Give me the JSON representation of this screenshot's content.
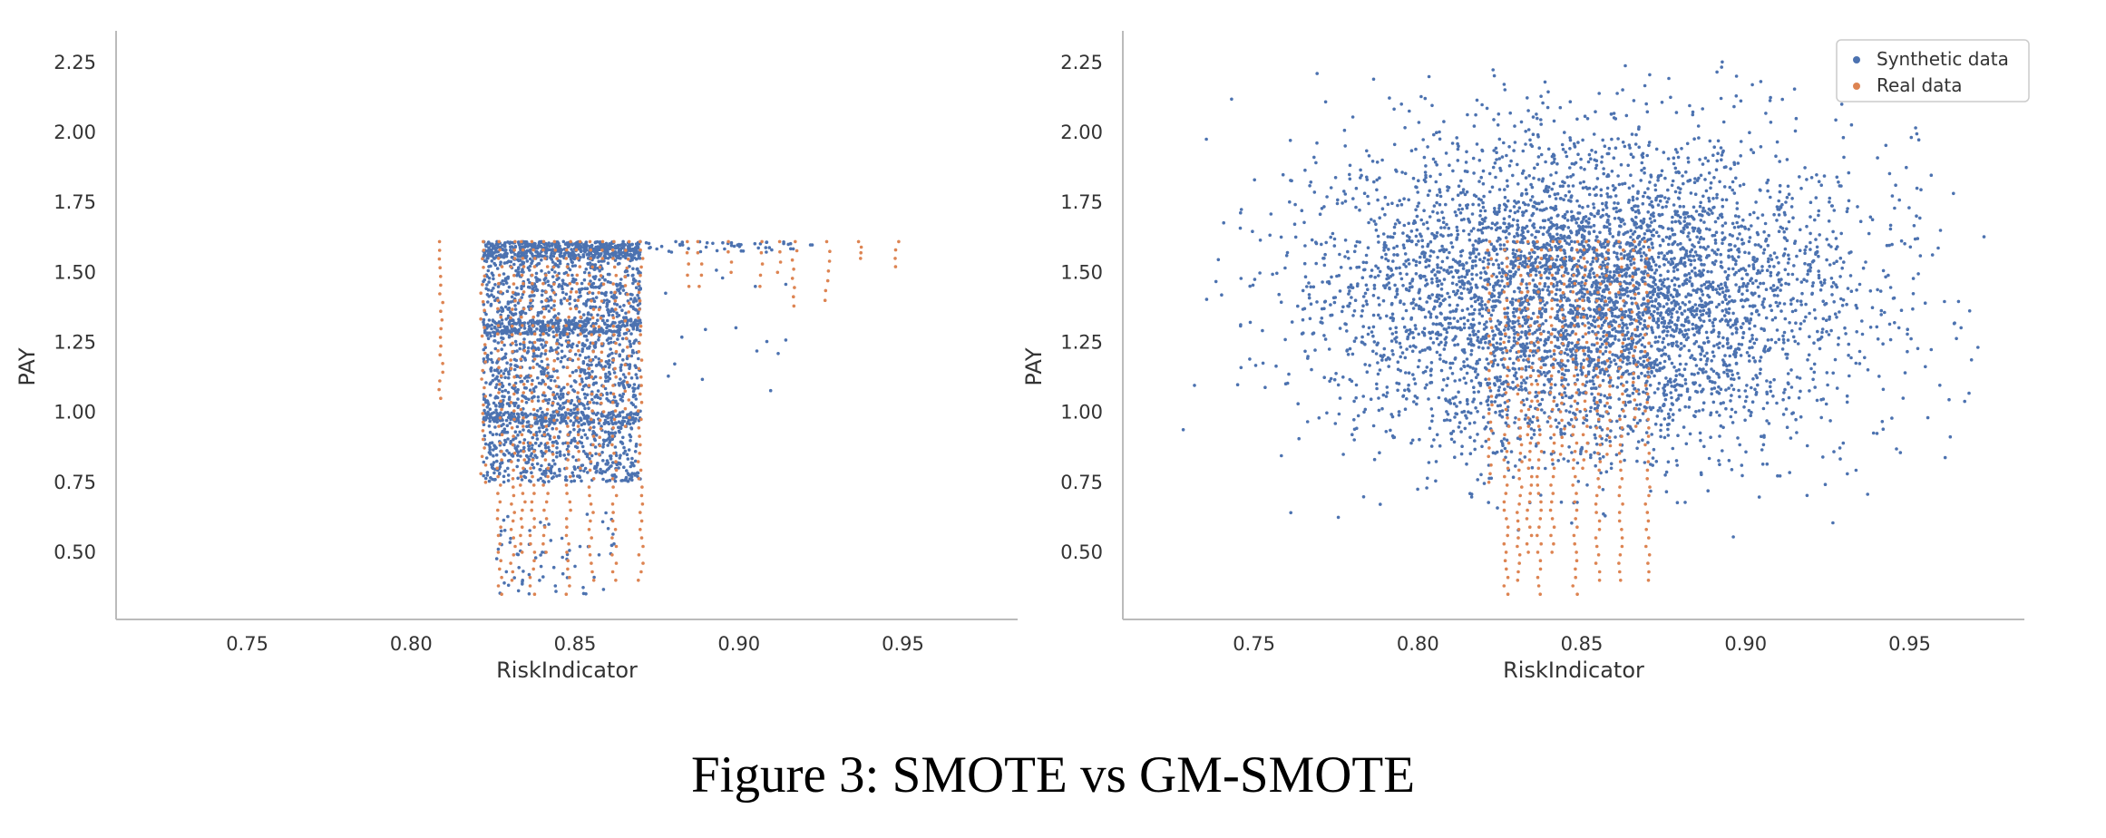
{
  "figure": {
    "caption": "Figure 3: SMOTE vs GM-SMOTE"
  },
  "colors": {
    "synthetic": "#4c72b0",
    "real": "#dd8452",
    "axis": "#bbbbbb",
    "text": "#333333"
  },
  "chart_data": [
    {
      "type": "scatter",
      "title": "",
      "xlabel": "RiskIndicator",
      "ylabel": "PAY",
      "xlim": [
        0.71,
        0.985
      ],
      "ylim": [
        0.26,
        2.35
      ],
      "xticks": [
        "0.75",
        "0.80",
        "0.85",
        "0.90",
        "0.95"
      ],
      "yticks": [
        "0.50",
        "0.75",
        "1.00",
        "1.25",
        "1.50",
        "1.75",
        "2.00",
        "2.25"
      ],
      "grid": false,
      "legend": null,
      "series": [
        {
          "key": "synthetic",
          "description": "SMOTE synthetic points: interpolated within real clusters",
          "x": [
            0.826,
            0.834,
            0.838,
            0.842,
            0.846,
            0.85,
            0.854,
            0.858,
            0.862,
            0.866,
            0.83,
            0.844,
            0.852,
            0.86,
            0.836,
            0.848,
            0.856,
            0.84,
            0.864,
            0.832,
            0.882,
            0.89,
            0.9,
            0.91,
            0.895,
            0.905,
            0.842,
            0.846,
            0.838,
            0.85,
            0.834,
            0.844,
            0.84,
            0.836
          ],
          "y": [
            1.6,
            1.58,
            1.55,
            1.5,
            1.45,
            1.4,
            1.35,
            1.3,
            1.25,
            1.2,
            1.1,
            1.05,
            1.0,
            0.98,
            0.95,
            0.85,
            0.8,
            0.78,
            1.15,
            1.42,
            1.6,
            1.59,
            1.6,
            1.58,
            1.48,
            1.45,
            0.6,
            0.55,
            0.48,
            0.45,
            0.4,
            0.38,
            0.5,
            0.42
          ],
          "density_note": "dense block x 0.822–0.870, y 0.75–1.61; sparse tail y 0.35–0.65; sparse extension x 0.87–0.93 near y 1.60"
        },
        {
          "key": "real",
          "description": "Real data points in vertical stripes",
          "x": [
            0.809,
            0.822,
            0.827,
            0.831,
            0.834,
            0.837,
            0.841,
            0.844,
            0.848,
            0.851,
            0.855,
            0.858,
            0.862,
            0.866,
            0.87,
            0.884,
            0.888,
            0.897,
            0.907,
            0.912,
            0.917,
            0.927,
            0.937,
            0.948
          ],
          "y_range": [
            [
              1.05,
              1.61
            ],
            [
              0.75,
              1.61
            ],
            [
              0.35,
              1.61
            ],
            [
              0.4,
              1.61
            ],
            [
              0.5,
              1.61
            ],
            [
              0.35,
              1.61
            ],
            [
              0.5,
              1.61
            ],
            [
              0.85,
              1.61
            ],
            [
              0.35,
              1.61
            ],
            [
              0.8,
              1.61
            ],
            [
              0.4,
              1.61
            ],
            [
              0.85,
              1.61
            ],
            [
              0.4,
              1.61
            ],
            [
              0.95,
              1.61
            ],
            [
              0.4,
              1.61
            ],
            [
              1.45,
              1.61
            ],
            [
              1.45,
              1.61
            ],
            [
              1.5,
              1.61
            ],
            [
              1.45,
              1.61
            ],
            [
              1.5,
              1.61
            ],
            [
              1.38,
              1.61
            ],
            [
              1.4,
              1.61
            ],
            [
              1.55,
              1.61
            ],
            [
              1.52,
              1.61
            ]
          ]
        }
      ]
    },
    {
      "type": "scatter",
      "title": "",
      "xlabel": "RiskIndicator",
      "ylabel": "PAY",
      "xlim": [
        0.71,
        0.985
      ],
      "ylim": [
        0.26,
        2.35
      ],
      "xticks": [
        "0.75",
        "0.80",
        "0.85",
        "0.90",
        "0.95"
      ],
      "yticks": [
        "0.50",
        "0.75",
        "1.00",
        "1.25",
        "1.50",
        "1.75",
        "2.00",
        "2.25"
      ],
      "grid": false,
      "legend": {
        "placement": "top-right",
        "entries": [
          {
            "label": "Synthetic data",
            "key": "synthetic"
          },
          {
            "label": "Real data",
            "key": "real"
          }
        ]
      },
      "series": [
        {
          "key": "synthetic",
          "description": "GM-SMOTE synthetic points: Gaussian cloud",
          "center": [
            0.852,
            1.42
          ],
          "spread": [
            0.04,
            0.28
          ],
          "x_extent": [
            0.72,
            0.975
          ],
          "y_extent": [
            0.55,
            2.26
          ]
        },
        {
          "key": "real",
          "description": "Real data points in vertical stripes",
          "x": [
            0.822,
            0.827,
            0.831,
            0.834,
            0.837,
            0.841,
            0.844,
            0.848,
            0.851,
            0.855,
            0.858,
            0.862,
            0.866,
            0.87
          ],
          "y_range": [
            [
              0.75,
              1.61
            ],
            [
              0.35,
              1.61
            ],
            [
              0.4,
              1.61
            ],
            [
              0.5,
              1.61
            ],
            [
              0.35,
              1.61
            ],
            [
              0.5,
              1.61
            ],
            [
              0.85,
              1.61
            ],
            [
              0.35,
              1.61
            ],
            [
              0.8,
              1.61
            ],
            [
              0.4,
              1.61
            ],
            [
              0.85,
              1.61
            ],
            [
              0.4,
              1.61
            ],
            [
              0.95,
              1.61
            ],
            [
              0.4,
              1.61
            ]
          ]
        }
      ]
    }
  ]
}
